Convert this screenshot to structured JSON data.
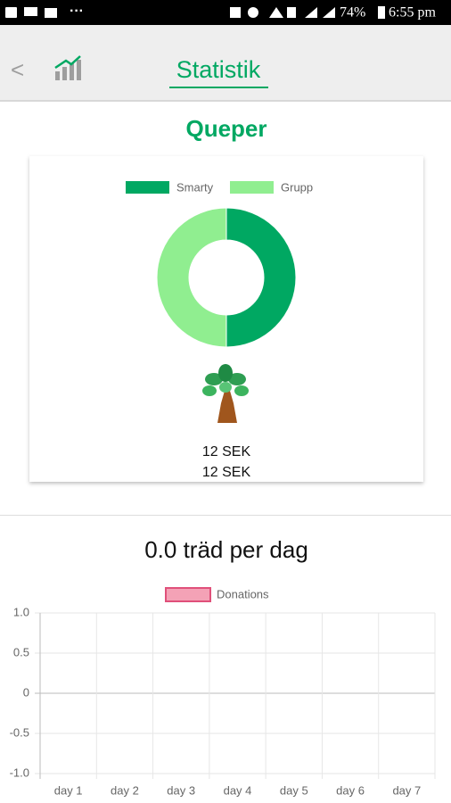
{
  "status_bar": {
    "dots": "···",
    "battery": "74%",
    "time": "6:55 pm"
  },
  "header": {
    "back": "<",
    "title": "Statistik"
  },
  "section_title": "Queper",
  "amounts": [
    "12 SEK",
    "12 SEK"
  ],
  "chart_data": [
    {
      "type": "pie",
      "categories": [
        "Smarty",
        "Grupp"
      ],
      "values": [
        50,
        50
      ],
      "colors": [
        "#00a862",
        "#90ee90"
      ],
      "donut": true,
      "legend": "top"
    },
    {
      "type": "line",
      "title": "0.0 träd per dag",
      "categories": [
        "day 1",
        "day 2",
        "day 3",
        "day 4",
        "day 5",
        "day 6",
        "day 7"
      ],
      "series": [
        {
          "name": "Donations",
          "color": "#f18ba4",
          "values": [
            null,
            null,
            null,
            null,
            null,
            null,
            null
          ]
        }
      ],
      "ylim": [
        -1,
        1
      ],
      "yticks": [
        {
          "value": -1,
          "label": "-1.0"
        },
        {
          "value": -0.5,
          "label": "-0.5"
        },
        0,
        {
          "value": 0.5,
          "label": "0.5"
        },
        {
          "value": 1,
          "label": "1.0"
        }
      ],
      "grid": true,
      "legend": "top"
    }
  ]
}
